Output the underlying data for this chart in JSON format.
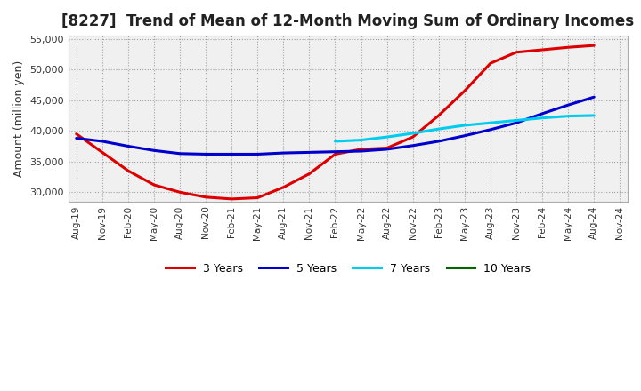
{
  "title": "[8227]  Trend of Mean of 12-Month Moving Sum of Ordinary Incomes",
  "ylabel": "Amount (million yen)",
  "plot_bg_color": "#f0f0f0",
  "fig_bg_color": "#ffffff",
  "grid_color": "#999999",
  "x_labels": [
    "Aug-19",
    "Nov-19",
    "Feb-20",
    "May-20",
    "Aug-20",
    "Nov-20",
    "Feb-21",
    "May-21",
    "Aug-21",
    "Nov-21",
    "Feb-22",
    "May-22",
    "Aug-22",
    "Nov-22",
    "Feb-23",
    "May-23",
    "Aug-23",
    "Nov-23",
    "Feb-24",
    "May-24",
    "Aug-24",
    "Nov-24"
  ],
  "ylim": [
    28500,
    55500
  ],
  "yticks": [
    30000,
    35000,
    40000,
    45000,
    50000,
    55000
  ],
  "series": {
    "3 Years": {
      "color": "#dd0000",
      "x_indices": [
        0,
        1,
        2,
        3,
        4,
        5,
        6,
        7,
        8,
        9,
        10,
        11,
        12,
        13,
        14,
        15,
        16,
        17,
        18,
        19,
        20
      ],
      "values": [
        39500,
        36500,
        33500,
        31200,
        30000,
        29200,
        28900,
        29100,
        30800,
        33000,
        36200,
        37000,
        37200,
        39000,
        42500,
        46500,
        51000,
        52800,
        53200,
        53600,
        53900
      ]
    },
    "5 Years": {
      "color": "#0000cc",
      "x_indices": [
        0,
        1,
        2,
        3,
        4,
        5,
        6,
        7,
        8,
        9,
        10,
        11,
        12,
        13,
        14,
        15,
        16,
        17,
        18,
        19,
        20
      ],
      "values": [
        38800,
        38300,
        37500,
        36800,
        36300,
        36200,
        36200,
        36200,
        36400,
        36500,
        36600,
        36700,
        37000,
        37600,
        38300,
        39200,
        40200,
        41300,
        42800,
        44200,
        45500
      ]
    },
    "7 Years": {
      "color": "#00ccee",
      "x_indices": [
        10,
        11,
        12,
        13,
        14,
        15,
        16,
        17,
        18,
        19,
        20
      ],
      "values": [
        38300,
        38500,
        39000,
        39600,
        40300,
        40900,
        41300,
        41700,
        42100,
        42400,
        42500
      ]
    },
    "10 Years": {
      "color": "#006600",
      "x_indices": [],
      "values": []
    }
  },
  "legend_labels": [
    "3 Years",
    "5 Years",
    "7 Years",
    "10 Years"
  ],
  "legend_colors": [
    "#dd0000",
    "#0000cc",
    "#00ccee",
    "#006600"
  ],
  "title_fontsize": 12,
  "ylabel_fontsize": 9,
  "tick_fontsize": 8,
  "xtick_fontsize": 7.5,
  "linewidth": 2.2
}
